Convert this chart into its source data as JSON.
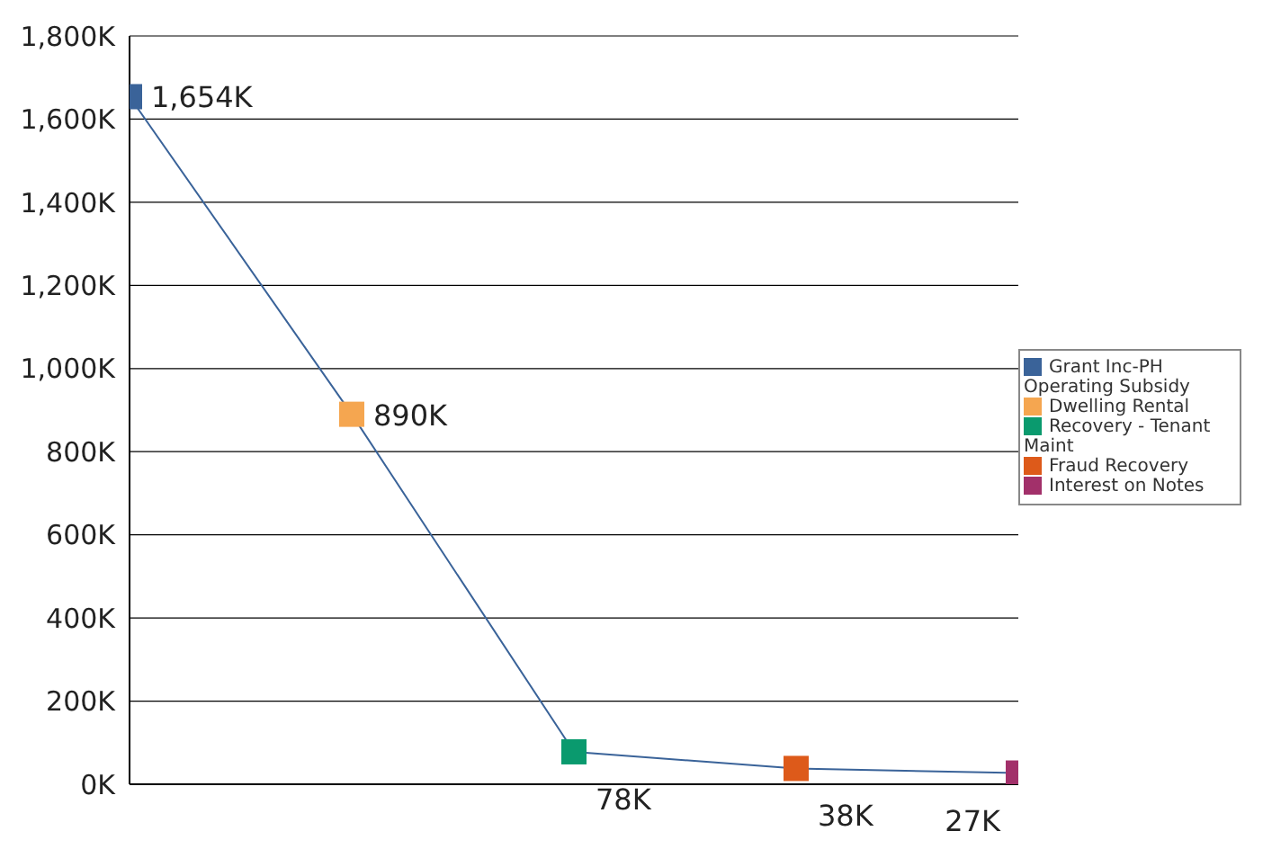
{
  "chart_data": {
    "type": "line",
    "categories": [
      null,
      null,
      null,
      null,
      null
    ],
    "series": [
      {
        "color": "#3a6399",
        "values": [
          1654,
          890,
          78,
          38,
          27
        ],
        "value_labels": [
          "1,654K",
          "890K",
          "78K",
          "38K",
          "27K"
        ],
        "marker": "none"
      },
      {
        "type": "scatter",
        "name": "Grant Inc-PH Operating Subsidy",
        "color": "#3a6399",
        "values": [
          1654,
          null,
          null,
          null,
          null
        ]
      },
      {
        "type": "scatter",
        "name": "Dwelling Rental",
        "color": "#f5a650",
        "values": [
          null,
          890,
          null,
          null,
          null
        ]
      },
      {
        "type": "scatter",
        "name": "Recovery - Tenant Maint",
        "color": "#0a9a6e",
        "values": [
          null,
          null,
          78,
          null,
          null
        ]
      },
      {
        "type": "scatter",
        "name": "Fraud Recovery",
        "color": "#dd5a1a",
        "values": [
          null,
          null,
          null,
          38,
          null
        ]
      },
      {
        "type": "scatter",
        "name": "Interest on Notes",
        "color": "#a2306a",
        "values": [
          null,
          null,
          null,
          null,
          27
        ]
      }
    ],
    "ylim": [
      0,
      1800
    ],
    "yticks": [
      {
        "value": 0,
        "label": "0K"
      },
      {
        "value": 200,
        "label": "200K"
      },
      {
        "value": 400,
        "label": "400K"
      },
      {
        "value": 600,
        "label": "600K"
      },
      {
        "value": 800,
        "label": "800K"
      },
      {
        "value": 1000,
        "label": "1,000K"
      },
      {
        "value": 1200,
        "label": "1,200K"
      },
      {
        "value": 1400,
        "label": "1,400K"
      },
      {
        "value": 1600,
        "label": "1,600K"
      },
      {
        "value": 1800,
        "label": "1,800K"
      }
    ],
    "grid": "y",
    "legend": "right",
    "marker": "square",
    "tick_labels": "y"
  }
}
